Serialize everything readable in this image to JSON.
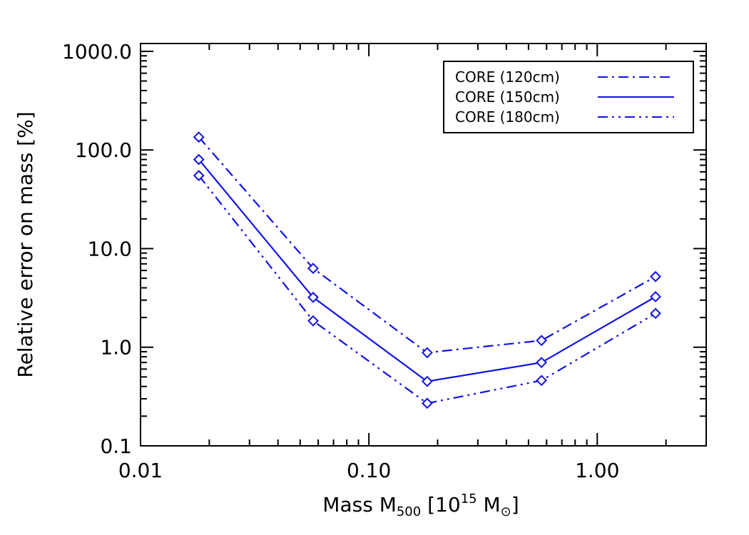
{
  "chart_data": {
    "type": "line",
    "title": "",
    "xlabel": "Mass M500 [10^15 M_sun]",
    "xlabel_parts": {
      "main": "Mass M",
      "sub": "500",
      "bracket_open": "[10",
      "sup": "15",
      "unit": "M",
      "bracket_close": "]"
    },
    "ylabel": "Relative error on mass [%]",
    "xscale": "log",
    "yscale": "log",
    "xlim": [
      0.01,
      3.0
    ],
    "ylim": [
      0.1,
      1200
    ],
    "x_ticks": [
      {
        "value": 0.01,
        "label": "0.01"
      },
      {
        "value": 0.1,
        "label": "0.10"
      },
      {
        "value": 1.0,
        "label": "1.00"
      }
    ],
    "y_ticks": [
      {
        "value": 0.1,
        "label": "0.1"
      },
      {
        "value": 1,
        "label": "1.0"
      },
      {
        "value": 10,
        "label": "10.0"
      },
      {
        "value": 100,
        "label": "100.0"
      },
      {
        "value": 1000,
        "label": "1000.0"
      }
    ],
    "x": [
      0.018,
      0.057,
      0.18,
      0.57,
      1.8
    ],
    "series": [
      {
        "name": "CORE (120cm)",
        "dash": "dash-dot",
        "values": [
          135,
          6.3,
          0.88,
          1.17,
          5.2
        ]
      },
      {
        "name": "CORE (150cm)",
        "dash": "solid",
        "values": [
          80,
          3.2,
          0.45,
          0.7,
          3.25
        ]
      },
      {
        "name": "CORE (180cm)",
        "dash": "dash-dot-dot",
        "values": [
          55,
          1.85,
          0.27,
          0.46,
          2.2
        ]
      }
    ],
    "marker": "diamond",
    "line_color": "#1212e6",
    "legend_position": "top-right",
    "grid": false
  }
}
